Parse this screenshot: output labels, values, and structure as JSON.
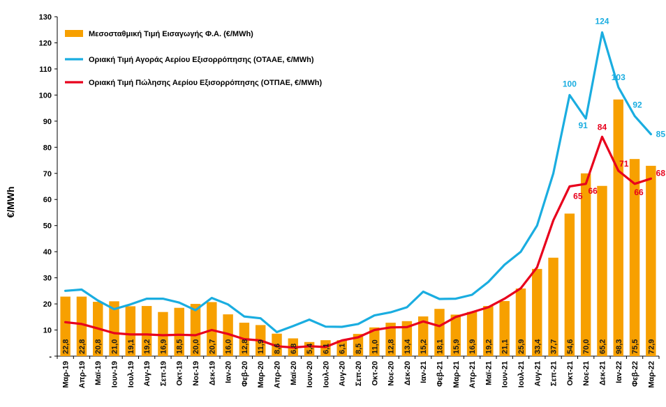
{
  "chart_data": {
    "type": "bar",
    "ylabel": "€/MWh",
    "ylim": [
      0,
      130
    ],
    "yticks": [
      0,
      10,
      20,
      30,
      40,
      50,
      60,
      70,
      80,
      90,
      100,
      110,
      120,
      130
    ],
    "ytick_labels": [
      "-",
      "10",
      "20",
      "30",
      "40",
      "50",
      "60",
      "70",
      "80",
      "90",
      "100",
      "110",
      "120",
      "130"
    ],
    "grid": false,
    "legend_position": "top-left",
    "categories": [
      "Μαρ-19",
      "Απρ-19",
      "Μαϊ-19",
      "Ιουν-19",
      "Ιουλ-19",
      "Αυγ-19",
      "Σεπ-19",
      "Οκτ-19",
      "Νοε-19",
      "Δεκ-19",
      "Ιαν-20",
      "Φεβ-20",
      "Μαρ-20",
      "Απρ-20",
      "Μαϊ-20",
      "Ιουν-20",
      "Ιουλ-20",
      "Αυγ-20",
      "Σεπ-20",
      "Οκτ-20",
      "Νοε-20",
      "Δεκ-20",
      "Ιαν-21",
      "Φεβ-21",
      "Μαρ-21",
      "Απρ-21",
      "Μαϊ-21",
      "Ιουν-21",
      "Ιουλ-21",
      "Αυγ-21",
      "Σεπ-21",
      "Οκτ-21",
      "Νοε-21",
      "Δεκ-21",
      "Ιαν-22",
      "Φεβ-22",
      "Μαρ-22"
    ],
    "series": [
      {
        "name": "Μεσοσταθμική Τιμή Εισαγωγής Φ.Α. (€/MWh)",
        "kind": "bar",
        "color": "#F7A000",
        "values": [
          22.8,
          22.8,
          20.8,
          21.0,
          19.1,
          19.2,
          16.9,
          18.5,
          20.0,
          20.7,
          16.0,
          12.8,
          11.9,
          8.6,
          6.8,
          5.4,
          6.1,
          6.1,
          8.5,
          11.0,
          12.8,
          13.4,
          15.2,
          18.1,
          15.9,
          16.9,
          19.2,
          21.1,
          25.9,
          33.4,
          37.7,
          54.6,
          70.0,
          65.2,
          98.3,
          75.5,
          72.9
        ],
        "labels": [
          "22,8",
          "22,8",
          "20,8",
          "21,0",
          "19,1",
          "19,2",
          "16,9",
          "18,5",
          "20,0",
          "20,7",
          "16,0",
          "12,8",
          "11,9",
          "8,6",
          "6,8",
          "5,4",
          "6,1",
          "6,1",
          "8,5",
          "11,0",
          "12,8",
          "13,4",
          "15,2",
          "18,1",
          "15,9",
          "16,9",
          "19,2",
          "21,1",
          "25,9",
          "33,4",
          "37,7",
          "54,6",
          "70,0",
          "65,2",
          "98,3",
          "75,5",
          "72,9"
        ]
      },
      {
        "name": "Οριακή Τιμή Αγοράς Αερίου Εξισορρόπησης  (ΟΤΑΑΕ, €/MWh)",
        "kind": "line",
        "color": "#1AADE0",
        "values": [
          25,
          25.5,
          21.3,
          18,
          19.8,
          22,
          22,
          20.5,
          17.6,
          22.3,
          19.8,
          15.2,
          14.5,
          9.2,
          11.5,
          14,
          11.3,
          11.2,
          12.3,
          15.6,
          16.8,
          18.7,
          24.7,
          21.9,
          22,
          23.5,
          28.4,
          35,
          40,
          50,
          70,
          100,
          91,
          124,
          103,
          92,
          85
        ],
        "annotations": [
          {
            "index": 31,
            "text": "100"
          },
          {
            "index": 32,
            "text": "91"
          },
          {
            "index": 33,
            "text": "124"
          },
          {
            "index": 34,
            "text": "103"
          },
          {
            "index": 35,
            "text": "92"
          },
          {
            "index": 36,
            "text": "85"
          }
        ]
      },
      {
        "name": "Οριακή Τιμή Πώλησης Αερίου Εξισορρόπησης (ΟΤΠΑΕ, €/MWh)",
        "kind": "line",
        "color": "#E8001C",
        "values": [
          13,
          12.3,
          10.6,
          8.8,
          8.3,
          8.3,
          8,
          8.2,
          8,
          10,
          8.5,
          6.5,
          6,
          3.8,
          3.3,
          3.8,
          3.5,
          6,
          7.2,
          10,
          11,
          11.1,
          13.3,
          11.5,
          15,
          16.8,
          18.7,
          22,
          26,
          34,
          52,
          65,
          66,
          84,
          71,
          66,
          68
        ],
        "annotations": [
          {
            "index": 31,
            "text": "65"
          },
          {
            "index": 32,
            "text": "66"
          },
          {
            "index": 33,
            "text": "84"
          },
          {
            "index": 34,
            "text": "71"
          },
          {
            "index": 35,
            "text": "66"
          },
          {
            "index": 36,
            "text": "68"
          }
        ]
      }
    ]
  }
}
